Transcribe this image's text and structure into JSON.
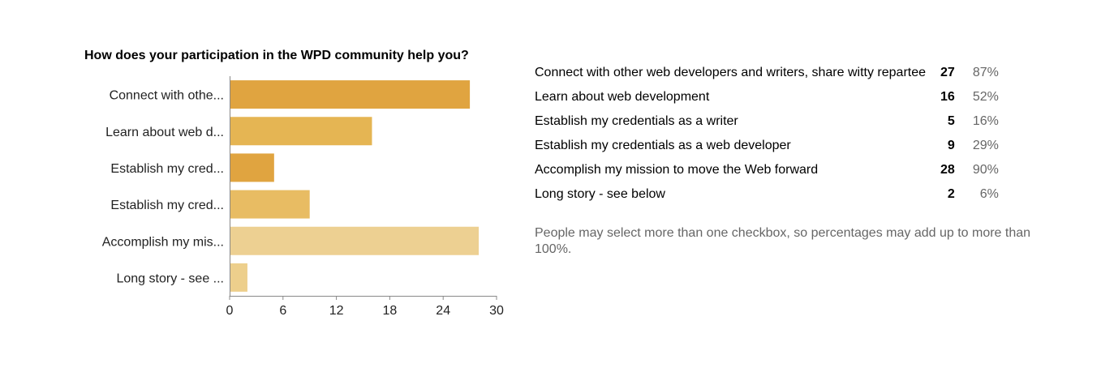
{
  "colors": {
    "bars": [
      "#e0a440",
      "#e5b553",
      "#e0a440",
      "#e8bc63",
      "#edd092",
      "#edcf8c"
    ],
    "axis": "#888888",
    "muted_text": "#666666"
  },
  "chart_data": {
    "type": "bar",
    "orientation": "horizontal",
    "title": "How does your participation in the WPD community help you?",
    "categories": [
      "Connect with othe...",
      "Learn about web d...",
      "Establish my cred...",
      "Establish my cred...",
      "Accomplish my mis...",
      "Long story - see ..."
    ],
    "values": [
      27,
      16,
      5,
      9,
      28,
      2
    ],
    "xlim": [
      0,
      30
    ],
    "xticks": [
      "0",
      "6",
      "12",
      "18",
      "24",
      "30"
    ],
    "xlabel": "",
    "ylabel": "",
    "grid": false,
    "legend": "none"
  },
  "results": [
    {
      "label": "Connect with other web developers and writers, share witty repartee",
      "count": "27",
      "percent": "87%"
    },
    {
      "label": "Learn about web development",
      "count": "16",
      "percent": "52%"
    },
    {
      "label": "Establish my credentials as a writer",
      "count": "5",
      "percent": "16%"
    },
    {
      "label": "Establish my credentials as a web developer",
      "count": "9",
      "percent": "29%"
    },
    {
      "label": "Accomplish my mission to move the Web forward",
      "count": "28",
      "percent": "90%"
    },
    {
      "label": "Long story - see below",
      "count": "2",
      "percent": "6%"
    }
  ],
  "footnote": "People may select more than one checkbox, so percentages may add up to more than 100%."
}
